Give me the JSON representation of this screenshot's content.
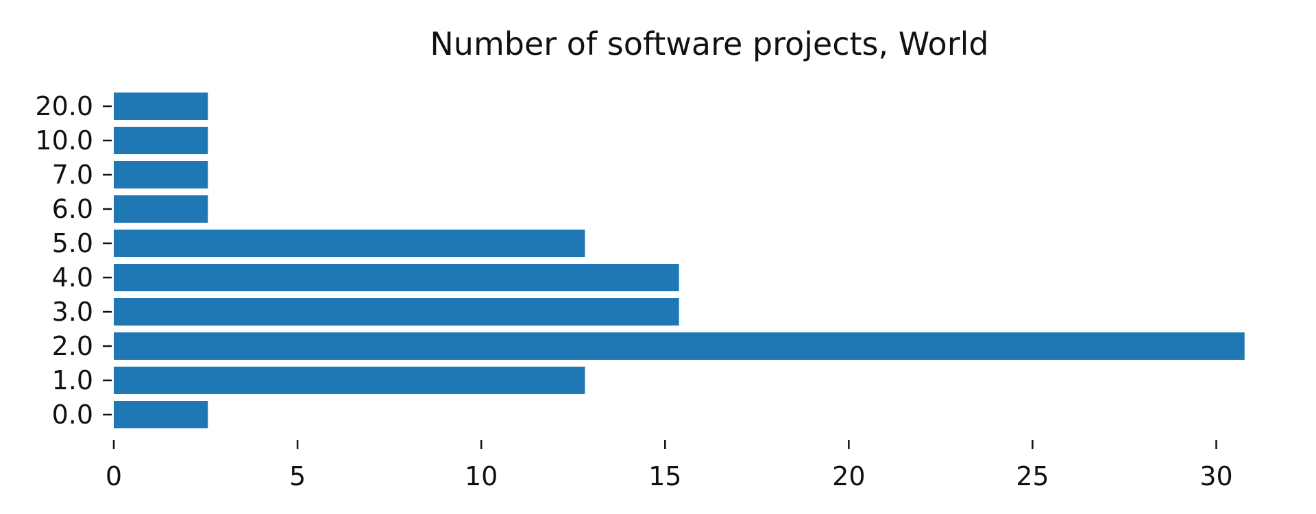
{
  "chart_data": {
    "type": "bar",
    "orientation": "horizontal",
    "title": "Number of software projects, World",
    "xlabel": "",
    "ylabel": "",
    "categories": [
      "0.0",
      "1.0",
      "2.0",
      "3.0",
      "4.0",
      "5.0",
      "6.0",
      "7.0",
      "10.0",
      "20.0"
    ],
    "values": [
      2.56,
      12.82,
      30.77,
      15.38,
      15.38,
      12.82,
      2.56,
      2.56,
      2.56,
      2.56
    ],
    "x_ticks": [
      "0",
      "5",
      "10",
      "15",
      "20",
      "25",
      "30"
    ],
    "xlim": [
      0,
      32
    ],
    "grid": false,
    "bar_color": "#1f77b4"
  }
}
